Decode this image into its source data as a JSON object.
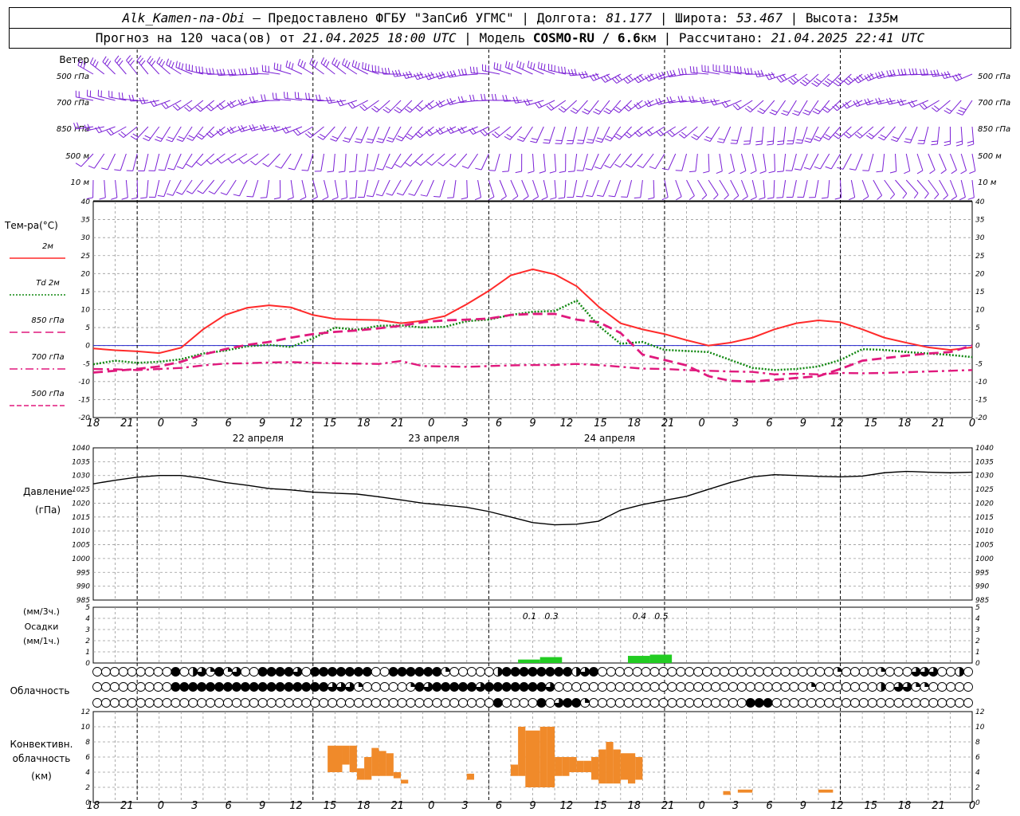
{
  "header": {
    "station": "Alk_Kamen-na-Obi",
    "provider": "– Предоставлено ФГБУ \"ЗапСиб УГМС\"",
    "lon_label": "Долгота:",
    "lon": "81.177",
    "lat_label": "Широта:",
    "lat": "53.467",
    "alt_label": "Высота:",
    "alt": "135",
    "alt_unit": "м",
    "forecast_label": "Прогноз на 120 часа(ов) от",
    "forecast_from": "21.04.2025 18:00 UTC",
    "model_label": "Модель",
    "model": "COSMO-RU / 6.6",
    "model_unit": "км",
    "computed_label": "Рассчитано:",
    "computed": "21.04.2025 22:41 UTC"
  },
  "wind_panel": {
    "title": "Ветер",
    "levels": [
      "500 гПа",
      "700 гПа",
      "850 гПа",
      "500 м",
      "10  м"
    ],
    "colors": {
      "barb": "#7a1fd6"
    }
  },
  "time_axis": {
    "hour_labels": [
      "18",
      "21",
      "0",
      "3",
      "6",
      "9",
      "12",
      "15",
      "18",
      "21",
      "0",
      "3",
      "6",
      "9",
      "12",
      "15",
      "18",
      "21",
      "0",
      "3",
      "6",
      "9",
      "12",
      "15",
      "18",
      "21",
      "0"
    ],
    "date_labels": [
      "22 апреля",
      "23 апреля",
      "24 апреля"
    ]
  },
  "temp_panel": {
    "title": "Тем-ра(°C)",
    "legend": [
      {
        "name": "2м",
        "color": "#ff2a2a",
        "style": "solid"
      },
      {
        "name": "Td  2м",
        "color": "#118811",
        "style": "dotted"
      },
      {
        "name": "850 гПа",
        "color": "#e0197d",
        "style": "dash"
      },
      {
        "name": "700 гПа",
        "color": "#e0197d",
        "style": "dashdot"
      },
      {
        "name": "500 гПа",
        "color": "#e0197d",
        "style": "shortdash"
      }
    ],
    "yticks": [
      "40",
      "35",
      "30",
      "25",
      "20",
      "15",
      "10",
      "5",
      "0",
      "-5",
      "-10",
      "-15",
      "-20"
    ]
  },
  "pressure_panel": {
    "title": "Давление",
    "unit": "(гПа)",
    "yticks": [
      "1040",
      "1035",
      "1030",
      "1025",
      "1020",
      "1015",
      "1010",
      "1005",
      "1000",
      "995",
      "990",
      "985"
    ]
  },
  "precip_panel": {
    "unit_3h": "(мм/3ч.)",
    "title": "Осадки",
    "unit_1h": "(мм/1ч.)",
    "yticks": [
      "5",
      "4",
      "3",
      "2",
      "1",
      "0"
    ],
    "labels": [
      "0.1",
      "0.3",
      "0.4",
      "0.5"
    ],
    "colors": {
      "bar": "#22cc22"
    }
  },
  "cloud_panel": {
    "title": "Облачность"
  },
  "conv_panel": {
    "title_1": "Конвективн.",
    "title_2": "облачность",
    "unit": "(км)",
    "yticks": [
      "12",
      "10",
      "8",
      "6",
      "4",
      "2",
      "0"
    ],
    "colors": {
      "bar": "#f08a2a"
    }
  },
  "chart_data": [
    {
      "type": "line",
      "title": "Тем-ра(°C)",
      "x_hours": [
        0,
        3,
        6,
        9,
        12,
        15,
        18,
        21,
        24,
        27,
        30,
        33,
        36,
        39,
        42,
        45,
        48,
        51,
        54,
        57,
        60,
        63,
        66,
        69,
        72,
        75,
        78,
        81,
        84,
        87,
        90,
        93,
        96,
        99,
        102,
        105,
        108,
        111,
        114,
        117,
        120
      ],
      "ylim": [
        -20,
        40
      ],
      "series": [
        {
          "name": "2м",
          "values": [
            -0.8,
            -1.3,
            -1.6,
            -2.1,
            -0.6,
            4.5,
            8.5,
            10.5,
            11.2,
            10.6,
            8.5,
            7.4,
            7.2,
            7.1,
            6.2,
            6.9,
            8.2,
            11.5,
            15.2,
            19.5,
            21.2,
            19.8,
            16.5,
            10.8,
            6.2,
            4.5,
            3.2,
            1.5,
            0,
            0.8,
            2.2,
            4.5,
            6.2,
            7,
            6.5,
            4.5,
            2.2,
            0.8,
            -0.5,
            -1.2,
            -0.5
          ]
        },
        {
          "name": "Td  2м",
          "values": [
            -5.2,
            -4.2,
            -4.8,
            -4.5,
            -3.8,
            -2.2,
            -1.4,
            -0.2,
            0.2,
            -0.4,
            2,
            5,
            4.4,
            5.5,
            5.6,
            5,
            5.2,
            6.8,
            7.2,
            8.5,
            9.4,
            9.6,
            12.5,
            5.5,
            0.5,
            1,
            -1.2,
            -1.5,
            -1.8,
            -4,
            -6.2,
            -6.8,
            -6.5,
            -5.8,
            -4,
            -1,
            -1.2,
            -1.8,
            -2.2,
            -2.6,
            -3.2
          ]
        },
        {
          "name": "850 гПа",
          "values": [
            -7.5,
            -7,
            -6.5,
            -5.8,
            -4.5,
            -2.5,
            -1,
            0.2,
            1,
            2.2,
            3.2,
            3.8,
            4.2,
            4.8,
            5.5,
            6.5,
            7,
            7.2,
            7.5,
            8.5,
            8.8,
            8.8,
            7.2,
            6.5,
            3.5,
            -2.5,
            -4,
            -5.5,
            -8.5,
            -9.8,
            -10,
            -9.5,
            -9,
            -8.5,
            -6.5,
            -4.2,
            -3.5,
            -2.8,
            -2.2,
            -1.8,
            0
          ]
        },
        {
          "name": "700 гПа",
          "values": [
            -6.5,
            -6.6,
            -6.8,
            -6.5,
            -6.2,
            -5.5,
            -5,
            -4.9,
            -4.7,
            -4.6,
            -4.8,
            -4.9,
            -5,
            -5.1,
            -4.3,
            -5.7,
            -5.8,
            -5.9,
            -5.7,
            -5.5,
            -5.4,
            -5.4,
            -5.1,
            -5.4,
            -5.9,
            -6.4,
            -6.5,
            -6.8,
            -7,
            -7.2,
            -7.3,
            -8,
            -7.8,
            -8,
            -7.6,
            -7.7,
            -7.6,
            -7.4,
            -7.2,
            -7.0,
            -6.8
          ]
        }
      ]
    },
    {
      "type": "line",
      "title": "Давление",
      "x_hours": [
        0,
        3,
        6,
        9,
        12,
        15,
        18,
        21,
        24,
        27,
        30,
        33,
        36,
        39,
        42,
        45,
        48,
        51,
        54,
        57,
        60,
        63,
        66,
        69,
        72,
        75,
        78,
        81,
        84,
        87,
        90,
        93,
        96,
        99,
        102,
        105,
        108,
        111,
        114,
        117,
        120
      ],
      "ylim": [
        985,
        1040
      ],
      "series": [
        {
          "name": "Давление",
          "values": [
            1027,
            1028.3,
            1029.4,
            1030,
            1030,
            1029,
            1027.5,
            1026.5,
            1025.3,
            1024.8,
            1024,
            1023.6,
            1023.3,
            1022.3,
            1021.2,
            1020,
            1019.3,
            1018.5,
            1017,
            1015,
            1013,
            1012.2,
            1012.4,
            1013.5,
            1017.5,
            1019.5,
            1021,
            1022.5,
            1025,
            1027.5,
            1029.5,
            1030.3,
            1030,
            1029.7,
            1029.5,
            1029.8,
            1031,
            1031.5,
            1031.2,
            1031,
            1031.2
          ]
        }
      ]
    },
    {
      "type": "bar",
      "title": "Осадки",
      "x_hours": [
        60,
        63,
        75,
        78
      ],
      "ylim": [
        0,
        5
      ],
      "values": [
        0.1,
        0.3,
        0.4,
        0.5
      ]
    },
    {
      "type": "bar",
      "title": "Конвективн. облачность",
      "ylim": [
        0,
        12
      ],
      "segments": [
        {
          "t0": 32,
          "t1": 34,
          "y0": 4,
          "y1": 7.5
        },
        {
          "t0": 34,
          "t1": 35,
          "y0": 5,
          "y1": 7.5
        },
        {
          "t0": 35,
          "t1": 36,
          "y0": 4,
          "y1": 7.5
        },
        {
          "t0": 36,
          "t1": 37,
          "y0": 3,
          "y1": 4.5
        },
        {
          "t0": 37,
          "t1": 38,
          "y0": 3,
          "y1": 6
        },
        {
          "t0": 38,
          "t1": 39,
          "y0": 3.5,
          "y1": 7.2
        },
        {
          "t0": 39,
          "t1": 40,
          "y0": 3.5,
          "y1": 6.8
        },
        {
          "t0": 40,
          "t1": 41,
          "y0": 3.5,
          "y1": 6.5
        },
        {
          "t0": 41,
          "t1": 42,
          "y0": 3.2,
          "y1": 4
        },
        {
          "t0": 42,
          "t1": 43,
          "y0": 2.5,
          "y1": 3
        },
        {
          "t0": 51,
          "t1": 52,
          "y0": 3,
          "y1": 3.8
        },
        {
          "t0": 57,
          "t1": 58,
          "y0": 3.5,
          "y1": 5
        },
        {
          "t0": 58,
          "t1": 59,
          "y0": 3.5,
          "y1": 10
        },
        {
          "t0": 59,
          "t1": 60,
          "y0": 2,
          "y1": 9.5
        },
        {
          "t0": 60,
          "t1": 61,
          "y0": 2,
          "y1": 9.5
        },
        {
          "t0": 61,
          "t1": 62,
          "y0": 2,
          "y1": 10
        },
        {
          "t0": 62,
          "t1": 63,
          "y0": 2,
          "y1": 10
        },
        {
          "t0": 63,
          "t1": 64,
          "y0": 3.5,
          "y1": 6
        },
        {
          "t0": 64,
          "t1": 65,
          "y0": 3.5,
          "y1": 6
        },
        {
          "t0": 65,
          "t1": 66,
          "y0": 4,
          "y1": 6
        },
        {
          "t0": 66,
          "t1": 67,
          "y0": 4,
          "y1": 5.5
        },
        {
          "t0": 67,
          "t1": 68,
          "y0": 4,
          "y1": 5.5
        },
        {
          "t0": 68,
          "t1": 69,
          "y0": 3,
          "y1": 6
        },
        {
          "t0": 69,
          "t1": 70,
          "y0": 2.5,
          "y1": 7
        },
        {
          "t0": 70,
          "t1": 71,
          "y0": 2.5,
          "y1": 8
        },
        {
          "t0": 71,
          "t1": 72,
          "y0": 2.5,
          "y1": 7
        },
        {
          "t0": 72,
          "t1": 73,
          "y0": 3,
          "y1": 6.5
        },
        {
          "t0": 73,
          "t1": 74,
          "y0": 2.5,
          "y1": 6.5
        },
        {
          "t0": 74,
          "t1": 75,
          "y0": 3,
          "y1": 6
        },
        {
          "t0": 86,
          "t1": 87,
          "y0": 1,
          "y1": 1.5
        },
        {
          "t0": 88,
          "t1": 90,
          "y0": 1.3,
          "y1": 1.7
        },
        {
          "t0": 99,
          "t1": 101,
          "y0": 1.3,
          "y1": 1.7
        }
      ]
    }
  ],
  "wind_rows": [
    {
      "dir": 300,
      "speed": 25,
      "dir_end": 240,
      "speed_end": 30
    },
    {
      "dir": 260,
      "speed": 20,
      "dir_end": 230,
      "speed_end": 25
    },
    {
      "dir": 240,
      "speed": 15,
      "dir_end": 200,
      "speed_end": 15
    },
    {
      "dir": 220,
      "speed": 10,
      "dir_end": 180,
      "speed_end": 10
    },
    {
      "dir": 200,
      "speed": 5,
      "dir_end": 160,
      "speed_end": 8
    }
  ],
  "cloud_rows": [
    "00000000040231413004444304444444004444441000002444444442340000000000000000000000000001000010003330020",
    "00000000044444444444444444433310000014344444344444443000000000000000000000000000001000000020331100000",
    "00000000000000000000000000000000000000000000004000040344100000000000000000044400000000000000000000000"
  ]
}
